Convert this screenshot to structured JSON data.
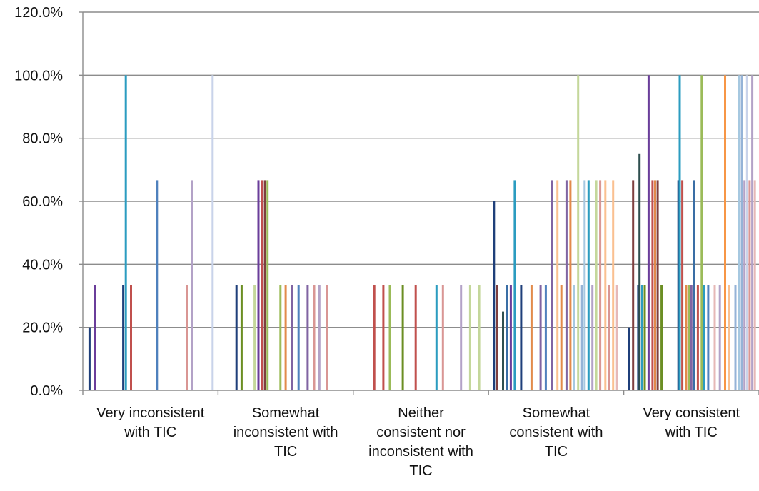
{
  "chart_data": {
    "type": "bar",
    "title": "",
    "xlabel": "",
    "ylabel": "",
    "ylim": [
      0,
      120
    ],
    "y_ticks": [
      "0.0%",
      "20.0%",
      "40.0%",
      "60.0%",
      "80.0%",
      "100.0%",
      "120.0%"
    ],
    "grid": true,
    "legend": "none",
    "categories": [
      [
        "Very inconsistent",
        "with TIC"
      ],
      [
        "Somewhat",
        "inconsistent with",
        "TIC"
      ],
      [
        "Neither",
        "consistent nor",
        "inconsistent with",
        "TIC"
      ],
      [
        "Somewhat",
        "consistent with",
        "TIC"
      ],
      [
        "Very consistent",
        "with TIC"
      ]
    ],
    "series_colors": [
      "#1f3f7a",
      "#6a3d9a",
      "#3a6ea5",
      "#2b9cc0",
      "#c0504d",
      "#e28a4b",
      "#9bbb59",
      "#8064a2",
      "#4f81bd",
      "#d99694",
      "#b3a2c7",
      "#a6c8e0",
      "#c4d79b",
      "#fac090",
      "#95b3d7",
      "#7f3f3f"
    ],
    "bars": [
      [
        {
          "x": 0.03,
          "value": 20,
          "color": "#1f3f7a"
        },
        {
          "x": 0.07,
          "value": 33.3,
          "color": "#6a3d9a"
        },
        {
          "x": 0.29,
          "value": 33.3,
          "color": "#1f3f7a"
        },
        {
          "x": 0.31,
          "value": 100,
          "color": "#2b9cc0"
        },
        {
          "x": 0.35,
          "value": 33.3,
          "color": "#c0504d"
        },
        {
          "x": 0.55,
          "value": 66.7,
          "color": "#4f81bd"
        },
        {
          "x": 0.78,
          "value": 33.3,
          "color": "#d99694"
        },
        {
          "x": 0.82,
          "value": 66.7,
          "color": "#b3a2c7"
        },
        {
          "x": 0.98,
          "value": 100,
          "color": "#c9d3ea"
        }
      ],
      [
        {
          "x": 0.12,
          "value": 33.3,
          "color": "#1f3f7a"
        },
        {
          "x": 0.16,
          "value": 33.3,
          "color": "#6b8e23"
        },
        {
          "x": 0.26,
          "value": 33.3,
          "color": "#c4d79b"
        },
        {
          "x": 0.29,
          "value": 66.7,
          "color": "#6a3d9a"
        },
        {
          "x": 0.32,
          "value": 66.7,
          "color": "#c0504d"
        },
        {
          "x": 0.34,
          "value": 66.7,
          "color": "#7f3f3f"
        },
        {
          "x": 0.36,
          "value": 66.7,
          "color": "#9bbb59"
        },
        {
          "x": 0.46,
          "value": 33.3,
          "color": "#9bbb59"
        },
        {
          "x": 0.5,
          "value": 33.3,
          "color": "#e28a4b"
        },
        {
          "x": 0.55,
          "value": 33.3,
          "color": "#8064a2"
        },
        {
          "x": 0.6,
          "value": 33.3,
          "color": "#4f81bd"
        },
        {
          "x": 0.67,
          "value": 33.3,
          "color": "#8064a2"
        },
        {
          "x": 0.72,
          "value": 33.3,
          "color": "#d99694"
        },
        {
          "x": 0.76,
          "value": 33.3,
          "color": "#b3a2c7"
        },
        {
          "x": 0.82,
          "value": 33.3,
          "color": "#d99694"
        }
      ],
      [
        {
          "x": 0.14,
          "value": 33.3,
          "color": "#c0504d"
        },
        {
          "x": 0.21,
          "value": 33.3,
          "color": "#c0504d"
        },
        {
          "x": 0.26,
          "value": 33.3,
          "color": "#9bbb59"
        },
        {
          "x": 0.36,
          "value": 33.3,
          "color": "#6b8e23"
        },
        {
          "x": 0.46,
          "value": 33.3,
          "color": "#c0504d"
        },
        {
          "x": 0.62,
          "value": 33.3,
          "color": "#2b9cc0"
        },
        {
          "x": 0.67,
          "value": 33.3,
          "color": "#d99694"
        },
        {
          "x": 0.81,
          "value": 33.3,
          "color": "#b3a2c7"
        },
        {
          "x": 0.88,
          "value": 33.3,
          "color": "#c4d79b"
        },
        {
          "x": 0.95,
          "value": 33.3,
          "color": "#c4d79b"
        }
      ],
      [
        {
          "x": 0.02,
          "value": 60,
          "color": "#1f3f7a"
        },
        {
          "x": 0.04,
          "value": 33.3,
          "color": "#7f3f3f"
        },
        {
          "x": 0.09,
          "value": 25,
          "color": "#2f4f4f"
        },
        {
          "x": 0.12,
          "value": 33.3,
          "color": "#3a6ea5"
        },
        {
          "x": 0.15,
          "value": 33.3,
          "color": "#6a3d9a"
        },
        {
          "x": 0.18,
          "value": 66.7,
          "color": "#2b9cc0"
        },
        {
          "x": 0.23,
          "value": 33.3,
          "color": "#1f3f7a"
        },
        {
          "x": 0.31,
          "value": 33.3,
          "color": "#e28a4b"
        },
        {
          "x": 0.38,
          "value": 33.3,
          "color": "#8064a2"
        },
        {
          "x": 0.42,
          "value": 33.3,
          "color": "#4f81bd"
        },
        {
          "x": 0.47,
          "value": 66.7,
          "color": "#8064a2"
        },
        {
          "x": 0.51,
          "value": 66.7,
          "color": "#fac090"
        },
        {
          "x": 0.54,
          "value": 33.3,
          "color": "#e28a4b"
        },
        {
          "x": 0.58,
          "value": 66.7,
          "color": "#8064a2"
        },
        {
          "x": 0.61,
          "value": 66.7,
          "color": "#e28a4b"
        },
        {
          "x": 0.64,
          "value": 33.3,
          "color": "#a6c8e0"
        },
        {
          "x": 0.67,
          "value": 100,
          "color": "#c4d79b"
        },
        {
          "x": 0.7,
          "value": 33.3,
          "color": "#95b3d7"
        },
        {
          "x": 0.72,
          "value": 66.7,
          "color": "#a6c8e0"
        },
        {
          "x": 0.75,
          "value": 66.7,
          "color": "#2b9cc0"
        },
        {
          "x": 0.78,
          "value": 33.3,
          "color": "#b3a2c7"
        },
        {
          "x": 0.81,
          "value": 66.7,
          "color": "#c4d79b"
        },
        {
          "x": 0.84,
          "value": 66.7,
          "color": "#d99694"
        },
        {
          "x": 0.88,
          "value": 66.7,
          "color": "#fac090"
        },
        {
          "x": 0.91,
          "value": 33.3,
          "color": "#d99694"
        },
        {
          "x": 0.94,
          "value": 66.7,
          "color": "#fac090"
        },
        {
          "x": 0.97,
          "value": 33.3,
          "color": "#e6b8b7"
        }
      ],
      [
        {
          "x": 0.02,
          "value": 20,
          "color": "#1f3f7a"
        },
        {
          "x": 0.05,
          "value": 66.7,
          "color": "#7f3f3f"
        },
        {
          "x": 0.09,
          "value": 33.3,
          "color": "#1f3f7a"
        },
        {
          "x": 0.1,
          "value": 75,
          "color": "#2f4f4f"
        },
        {
          "x": 0.12,
          "value": 33.3,
          "color": "#2b9cc0"
        },
        {
          "x": 0.14,
          "value": 33.3,
          "color": "#6b8e23"
        },
        {
          "x": 0.17,
          "value": 100,
          "color": "#6a3d9a"
        },
        {
          "x": 0.2,
          "value": 66.7,
          "color": "#c0504d"
        },
        {
          "x": 0.22,
          "value": 66.7,
          "color": "#e28a4b"
        },
        {
          "x": 0.24,
          "value": 66.7,
          "color": "#7f3f3f"
        },
        {
          "x": 0.27,
          "value": 33.3,
          "color": "#6b8e23"
        },
        {
          "x": 0.4,
          "value": 66.7,
          "color": "#1f3f7a"
        },
        {
          "x": 0.41,
          "value": 100,
          "color": "#2b9cc0"
        },
        {
          "x": 0.43,
          "value": 66.7,
          "color": "#c0504d"
        },
        {
          "x": 0.46,
          "value": 33.3,
          "color": "#e28a4b"
        },
        {
          "x": 0.48,
          "value": 33.3,
          "color": "#9bbb59"
        },
        {
          "x": 0.5,
          "value": 33.3,
          "color": "#8064a2"
        },
        {
          "x": 0.52,
          "value": 66.7,
          "color": "#3a6ea5"
        },
        {
          "x": 0.55,
          "value": 33.3,
          "color": "#c0504d"
        },
        {
          "x": 0.58,
          "value": 100,
          "color": "#9bbb59"
        },
        {
          "x": 0.6,
          "value": 33.3,
          "color": "#2b9cc0"
        },
        {
          "x": 0.63,
          "value": 33.3,
          "color": "#4f81bd"
        },
        {
          "x": 0.68,
          "value": 33.3,
          "color": "#e6b8b7"
        },
        {
          "x": 0.72,
          "value": 33.3,
          "color": "#b3a2c7"
        },
        {
          "x": 0.76,
          "value": 100,
          "color": "#f79646"
        },
        {
          "x": 0.79,
          "value": 33.3,
          "color": "#fac090"
        },
        {
          "x": 0.84,
          "value": 33.3,
          "color": "#95b3d7"
        },
        {
          "x": 0.87,
          "value": 100,
          "color": "#a6c8e0"
        },
        {
          "x": 0.89,
          "value": 100,
          "color": "#95b3d7"
        },
        {
          "x": 0.91,
          "value": 66.7,
          "color": "#b3a2c7"
        },
        {
          "x": 0.93,
          "value": 100,
          "color": "#c9d3ea"
        },
        {
          "x": 0.95,
          "value": 66.7,
          "color": "#d99694"
        },
        {
          "x": 0.97,
          "value": 100,
          "color": "#b3a2c7"
        },
        {
          "x": 0.99,
          "value": 66.7,
          "color": "#e6b8b7"
        }
      ]
    ]
  }
}
